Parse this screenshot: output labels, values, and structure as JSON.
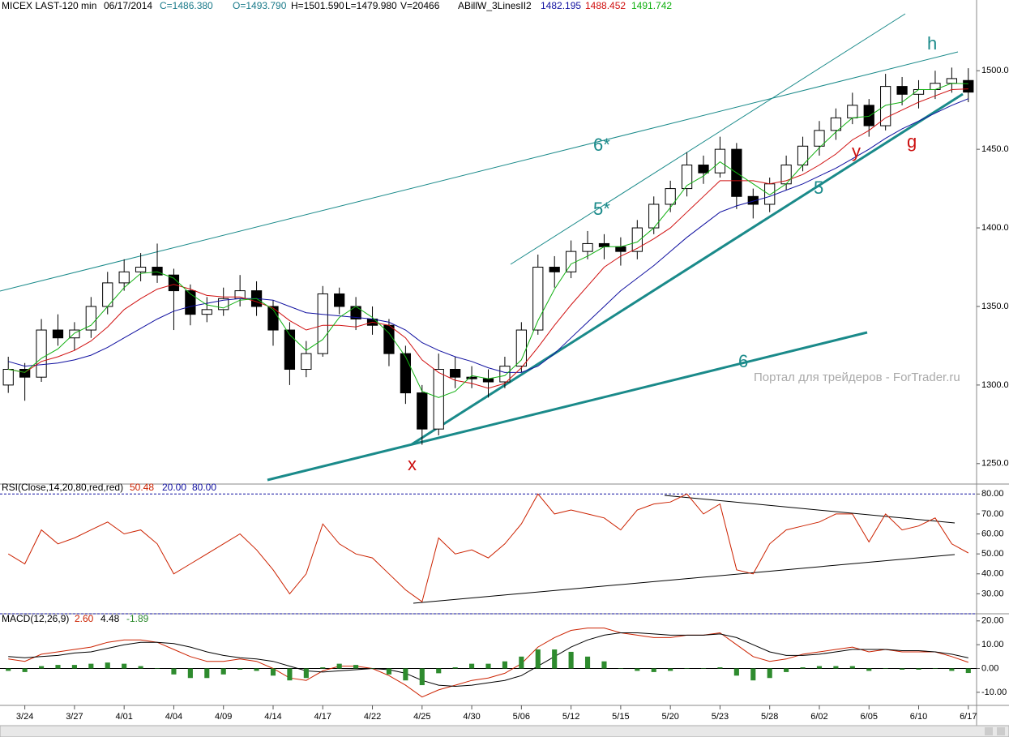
{
  "chart_data": [
    {
      "type": "candlestick",
      "header": [
        "MICEX LAST-120 min",
        "06/17/2014",
        "C=1486.380",
        "O=1493.790",
        "H=1501.590",
        "L=1479.980",
        "V=20466"
      ],
      "indicator": "ABillW_3LinesII2",
      "categories": [
        null,
        "3/24",
        null,
        null,
        "3/27",
        null,
        null,
        "4/01",
        null,
        null,
        "4/04",
        null,
        null,
        "4/09",
        null,
        null,
        "4/14",
        null,
        null,
        "4/17",
        null,
        null,
        "4/22",
        null,
        null,
        "4/25",
        null,
        null,
        "4/30",
        null,
        null,
        "5/06",
        null,
        null,
        "5/12",
        null,
        null,
        "5/15",
        null,
        null,
        "5/20",
        null,
        null,
        "5/23",
        null,
        null,
        "5/28",
        null,
        null,
        "6/02",
        null,
        null,
        "6/05",
        null,
        null,
        "6/10",
        null,
        null,
        "6/17"
      ],
      "candles": [
        [
          1300,
          1318,
          1295,
          1310
        ],
        [
          1310,
          1314,
          1290,
          1305
        ],
        [
          1305,
          1342,
          1302,
          1335
        ],
        [
          1335,
          1345,
          1325,
          1330
        ],
        [
          1330,
          1340,
          1322,
          1335
        ],
        [
          1335,
          1356,
          1330,
          1350
        ],
        [
          1350,
          1372,
          1345,
          1365
        ],
        [
          1365,
          1380,
          1360,
          1372
        ],
        [
          1372,
          1384,
          1366,
          1375
        ],
        [
          1375,
          1390,
          1365,
          1370
        ],
        [
          1370,
          1374,
          1335,
          1360
        ],
        [
          1360,
          1364,
          1338,
          1345
        ],
        [
          1345,
          1356,
          1340,
          1348
        ],
        [
          1348,
          1362,
          1344,
          1355
        ],
        [
          1355,
          1370,
          1350,
          1360
        ],
        [
          1360,
          1366,
          1344,
          1350
        ],
        [
          1350,
          1354,
          1325,
          1335
        ],
        [
          1335,
          1340,
          1300,
          1310
        ],
        [
          1310,
          1328,
          1305,
          1320
        ],
        [
          1320,
          1363,
          1318,
          1358
        ],
        [
          1358,
          1362,
          1345,
          1350
        ],
        [
          1350,
          1356,
          1335,
          1342
        ],
        [
          1342,
          1350,
          1332,
          1338
        ],
        [
          1338,
          1342,
          1312,
          1320
        ],
        [
          1320,
          1325,
          1288,
          1295
        ],
        [
          1295,
          1300,
          1262,
          1272
        ],
        [
          1272,
          1320,
          1268,
          1310
        ],
        [
          1310,
          1318,
          1298,
          1305
        ],
        [
          1305,
          1312,
          1298,
          1304
        ],
        [
          1304,
          1310,
          1292,
          1302
        ],
        [
          1302,
          1318,
          1298,
          1312
        ],
        [
          1312,
          1340,
          1308,
          1335
        ],
        [
          1335,
          1383,
          1332,
          1375
        ],
        [
          1375,
          1382,
          1362,
          1372
        ],
        [
          1372,
          1392,
          1368,
          1385
        ],
        [
          1385,
          1398,
          1380,
          1390
        ],
        [
          1390,
          1396,
          1380,
          1388
        ],
        [
          1388,
          1394,
          1376,
          1385
        ],
        [
          1385,
          1405,
          1380,
          1400
        ],
        [
          1400,
          1420,
          1396,
          1415
        ],
        [
          1415,
          1430,
          1410,
          1425
        ],
        [
          1425,
          1448,
          1420,
          1440
        ],
        [
          1440,
          1446,
          1428,
          1435
        ],
        [
          1435,
          1458,
          1432,
          1450
        ],
        [
          1450,
          1454,
          1412,
          1420
        ],
        [
          1420,
          1425,
          1406,
          1415
        ],
        [
          1415,
          1432,
          1410,
          1428
        ],
        [
          1428,
          1446,
          1424,
          1440
        ],
        [
          1440,
          1458,
          1436,
          1452
        ],
        [
          1452,
          1468,
          1446,
          1462
        ],
        [
          1462,
          1476,
          1456,
          1470
        ],
        [
          1470,
          1486,
          1466,
          1478
        ],
        [
          1478,
          1482,
          1458,
          1465
        ],
        [
          1465,
          1498,
          1462,
          1490
        ],
        [
          1490,
          1496,
          1478,
          1485
        ],
        [
          1485,
          1494,
          1476,
          1488
        ],
        [
          1488,
          1500,
          1482,
          1492
        ],
        [
          1492,
          1502,
          1486,
          1495
        ],
        [
          1493.79,
          1501.59,
          1479.98,
          1486.38
        ]
      ],
      "series": [
        {
          "color": "#1010a0",
          "values": [
            1315,
            1312,
            1313,
            1314,
            1316,
            1319,
            1324,
            1330,
            1336,
            1342,
            1347,
            1350,
            1352,
            1354,
            1355,
            1355,
            1354,
            1350,
            1346,
            1345,
            1344,
            1343,
            1342,
            1340,
            1335,
            1327,
            1322,
            1318,
            1315,
            1311,
            1308,
            1308,
            1312,
            1320,
            1330,
            1340,
            1350,
            1360,
            1368,
            1376,
            1385,
            1394,
            1402,
            1410,
            1414,
            1417,
            1420,
            1424,
            1428,
            1433,
            1438,
            1444,
            1450,
            1457,
            1463,
            1468,
            1473,
            1478,
            1482.195
          ]
        },
        {
          "color": "#d01010",
          "values": [
            1310,
            1308,
            1315,
            1318,
            1322,
            1328,
            1337,
            1348,
            1355,
            1361,
            1364,
            1361,
            1357,
            1356,
            1356,
            1353,
            1349,
            1341,
            1335,
            1338,
            1338,
            1337,
            1340,
            1338,
            1330,
            1316,
            1308,
            1303,
            1301,
            1298,
            1301,
            1311,
            1324,
            1338,
            1351,
            1363,
            1375,
            1382,
            1387,
            1393,
            1400,
            1410,
            1420,
            1430,
            1430,
            1430,
            1428,
            1430,
            1434,
            1440,
            1447,
            1456,
            1462,
            1470,
            1475,
            1480,
            1484,
            1488,
            1488.452
          ]
        },
        {
          "color": "#10b010",
          "values": [
            1310,
            1308,
            1317,
            1323,
            1333,
            1338,
            1350,
            1362,
            1371,
            1372,
            1368,
            1358,
            1351,
            1349,
            1354,
            1355,
            1348,
            1332,
            1322,
            1329,
            1343,
            1350,
            1343,
            1333,
            1318,
            1296,
            1292,
            1296,
            1306,
            1304,
            1306,
            1316,
            1341,
            1361,
            1377,
            1382,
            1388,
            1388,
            1391,
            1400,
            1413,
            1427,
            1433,
            1442,
            1435,
            1428,
            1421,
            1428,
            1440,
            1451,
            1461,
            1470,
            1471,
            1478,
            1480,
            1488,
            1488,
            1492,
            1491.742
          ]
        }
      ],
      "ylim": [
        1237,
        1545
      ],
      "yticks": [
        {
          "value": 1250,
          "label": "1250.00"
        },
        {
          "value": 1300,
          "label": "1300.00"
        },
        {
          "value": 1350,
          "label": "1350.00"
        },
        {
          "value": 1400,
          "label": "1400.00"
        },
        {
          "value": 1450,
          "label": "1450.00"
        },
        {
          "value": 1500,
          "label": "1500.00"
        }
      ],
      "annotations": [
        "6*",
        "5*",
        "5",
        "6",
        "x",
        "y",
        "g",
        "h"
      ],
      "watermark": "Портал для трейдеров - ForTrader.ru"
    },
    {
      "type": "line",
      "title": "RSI(Close,14,20,80,red,red)",
      "series": [
        {
          "color": "#cc2200",
          "values": [
            50,
            45,
            62,
            55,
            58,
            62,
            66,
            60,
            62,
            55,
            40,
            45,
            50,
            55,
            60,
            52,
            42,
            30,
            40,
            65,
            55,
            50,
            48,
            40,
            32,
            26,
            58,
            50,
            52,
            48,
            55,
            65,
            80,
            70,
            72,
            70,
            68,
            62,
            72,
            75,
            76,
            80,
            70,
            75,
            42,
            40,
            55,
            62,
            64,
            66,
            70,
            70,
            56,
            70,
            62,
            64,
            68,
            55,
            50.48
          ]
        }
      ],
      "levels": [
        {
          "value": 20,
          "label": "20.00"
        },
        {
          "value": 80,
          "label": "80.00"
        }
      ],
      "level_color": "#1010a0",
      "ylim": [
        20,
        85
      ],
      "yticks": [
        {
          "value": 30,
          "label": "30.00"
        },
        {
          "value": 40,
          "label": "40.00"
        },
        {
          "value": 50,
          "label": "50.00"
        },
        {
          "value": 60,
          "label": "60.00"
        },
        {
          "value": 70,
          "label": "70.00"
        },
        {
          "value": 80,
          "label": "80.00"
        }
      ]
    },
    {
      "type": "macd",
      "title": "MACD(12,26,9)",
      "series": [
        {
          "color": "#cc2200",
          "last_label": "2.60",
          "values": [
            4,
            3,
            6,
            7,
            8,
            9,
            11,
            12,
            12,
            11,
            8,
            5,
            3,
            3,
            4,
            3,
            0,
            -4,
            -5,
            -1,
            1,
            1,
            0,
            -3,
            -7,
            -12,
            -9,
            -7,
            -5,
            -4,
            -2,
            2,
            9,
            13,
            16,
            17,
            17,
            15,
            14,
            13,
            13,
            14,
            14,
            15,
            10,
            5,
            3,
            4,
            6,
            7,
            8,
            9,
            7,
            8,
            7,
            7,
            7,
            5,
            2.6
          ]
        },
        {
          "color": "#000000",
          "last_label": "4.48",
          "values": [
            5,
            4.5,
            5,
            5.5,
            6.5,
            7,
            8.5,
            10,
            11,
            11,
            10.5,
            9,
            7,
            5.5,
            4.5,
            4,
            3,
            1,
            -1,
            -1.5,
            -1,
            -0.5,
            0,
            -0.5,
            -2,
            -5,
            -7,
            -7.5,
            -7,
            -6,
            -5,
            -3,
            1,
            5,
            9,
            12,
            14,
            15,
            15,
            14.5,
            14,
            14,
            14,
            14.5,
            13,
            10,
            7,
            5.5,
            5.5,
            6,
            7,
            8,
            8,
            8,
            7.5,
            7.5,
            7,
            6,
            4.48
          ]
        },
        {
          "color": "#2e8b2e",
          "last_label": "-1.89",
          "bars": true,
          "values": [
            -1,
            -1.5,
            1,
            1.5,
            1.5,
            2,
            2.5,
            2,
            1,
            0,
            -2.5,
            -4,
            -4,
            -2.5,
            -0.5,
            -1,
            -3,
            -5,
            -4,
            0.5,
            2,
            1.5,
            0,
            -2.5,
            -5,
            -7,
            -2,
            0.5,
            2,
            2,
            3,
            5,
            8,
            8,
            7,
            5,
            3,
            0,
            -1,
            -1.5,
            -1,
            0,
            0,
            0.5,
            -3,
            -5,
            -4,
            -1.5,
            0.5,
            1,
            1,
            1,
            -1,
            0,
            -0.5,
            -0.5,
            0,
            -1,
            -1.89
          ]
        }
      ],
      "ylim": [
        -15.5,
        23
      ],
      "yticks": [
        {
          "value": -10,
          "label": "-10.00"
        },
        {
          "value": 0,
          "label": "0.00"
        },
        {
          "value": 10,
          "label": "10.00"
        },
        {
          "value": 20,
          "label": "20.00"
        }
      ]
    }
  ]
}
